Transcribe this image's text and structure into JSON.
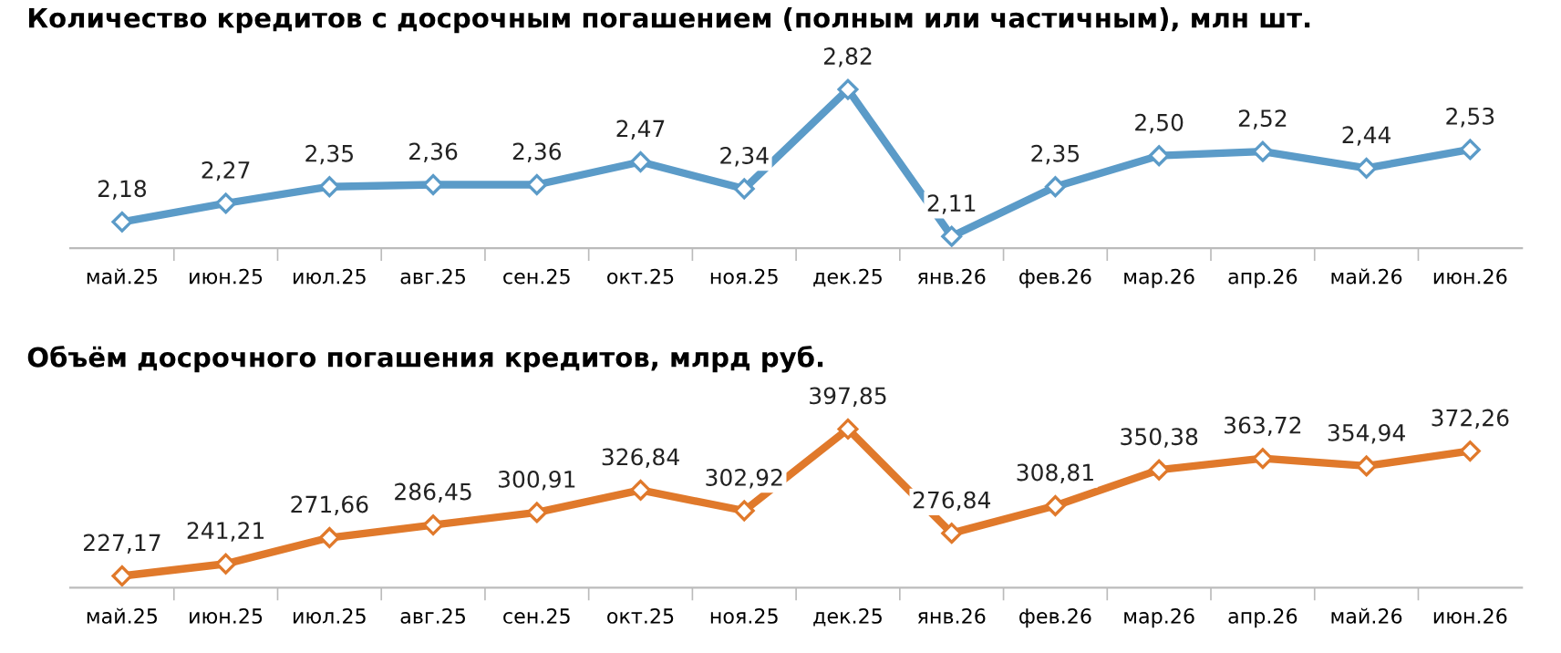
{
  "chart_data": [
    {
      "type": "line",
      "title": "Количество кредитов с досрочным погашением (полным или частичным), млн шт.",
      "categories": [
        "май.25",
        "июн.25",
        "июл.25",
        "авг.25",
        "сен.25",
        "окт.25",
        "ноя.25",
        "дек.25",
        "янв.26",
        "фев.26",
        "мар.26",
        "апр.26",
        "май.26",
        "июн.26"
      ],
      "series": [
        {
          "color": "#5b9bc8",
          "values": [
            2.18,
            2.27,
            2.35,
            2.36,
            2.36,
            2.47,
            2.34,
            2.82,
            2.11,
            2.35,
            2.5,
            2.52,
            2.44,
            2.53
          ],
          "value_labels": [
            "2,18",
            "2,27",
            "2,35",
            "2,36",
            "2,36",
            "2,47",
            "2,34",
            "2,82",
            "2,11",
            "2,35",
            "2,50",
            "2,52",
            "2,44",
            "2,53"
          ]
        }
      ],
      "marker": "diamond",
      "tick_labels": "x",
      "grid": false,
      "legend": false
    },
    {
      "type": "line",
      "title": "Объём досрочного погашения кредитов, млрд руб.",
      "categories": [
        "май.25",
        "июн.25",
        "июл.25",
        "авг.25",
        "сен.25",
        "окт.25",
        "ноя.25",
        "дек.25",
        "янв.26",
        "фев.26",
        "мар.26",
        "апр.26",
        "май.26",
        "июн.26"
      ],
      "series": [
        {
          "color": "#e0792b",
          "values": [
            227.17,
            241.21,
            271.66,
            286.45,
            300.91,
            326.84,
            302.92,
            397.85,
            276.84,
            308.81,
            350.38,
            363.72,
            354.94,
            372.26
          ],
          "value_labels": [
            "227,17",
            "241,21",
            "271,66",
            "286,45",
            "300,91",
            "326,84",
            "302,92",
            "397,85",
            "276,84",
            "308,81",
            "350,38",
            "363,72",
            "354,94",
            "372,26"
          ]
        }
      ],
      "marker": "diamond",
      "tick_labels": "x",
      "grid": false,
      "legend": false
    }
  ]
}
